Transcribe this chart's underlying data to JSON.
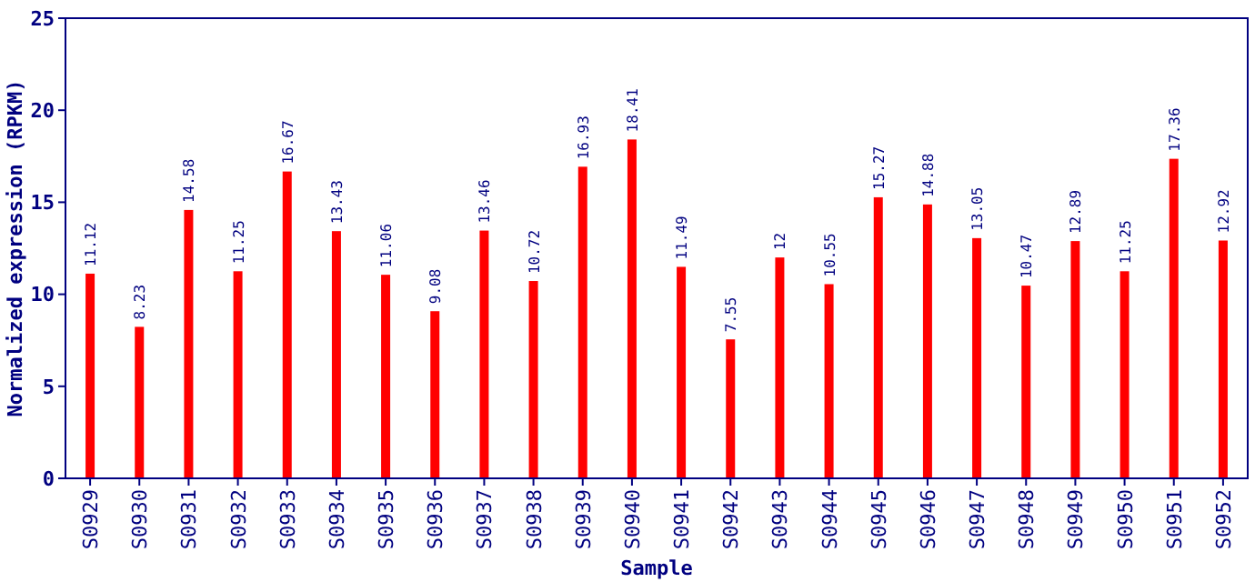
{
  "chart_data": {
    "type": "bar",
    "xlabel": "Sample",
    "ylabel": "Normalized expression (RPKM)",
    "categories": [
      "S0929",
      "S0930",
      "S0931",
      "S0932",
      "S0933",
      "S0934",
      "S0935",
      "S0936",
      "S0937",
      "S0938",
      "S0939",
      "S0940",
      "S0941",
      "S0942",
      "S0943",
      "S0944",
      "S0945",
      "S0946",
      "S0947",
      "S0948",
      "S0949",
      "S0950",
      "S0951",
      "S0952"
    ],
    "values": [
      11.12,
      8.23,
      14.58,
      11.25,
      16.67,
      13.43,
      11.06,
      9.08,
      13.46,
      10.72,
      16.93,
      18.41,
      11.49,
      7.55,
      12,
      10.55,
      15.27,
      14.88,
      13.05,
      10.47,
      12.89,
      11.25,
      17.36,
      12.92
    ],
    "color": "#ff0000",
    "ylim": [
      0,
      25
    ],
    "yticks": [
      0,
      5,
      10,
      15,
      20,
      25
    ],
    "data_labels": true,
    "grid": false
  }
}
